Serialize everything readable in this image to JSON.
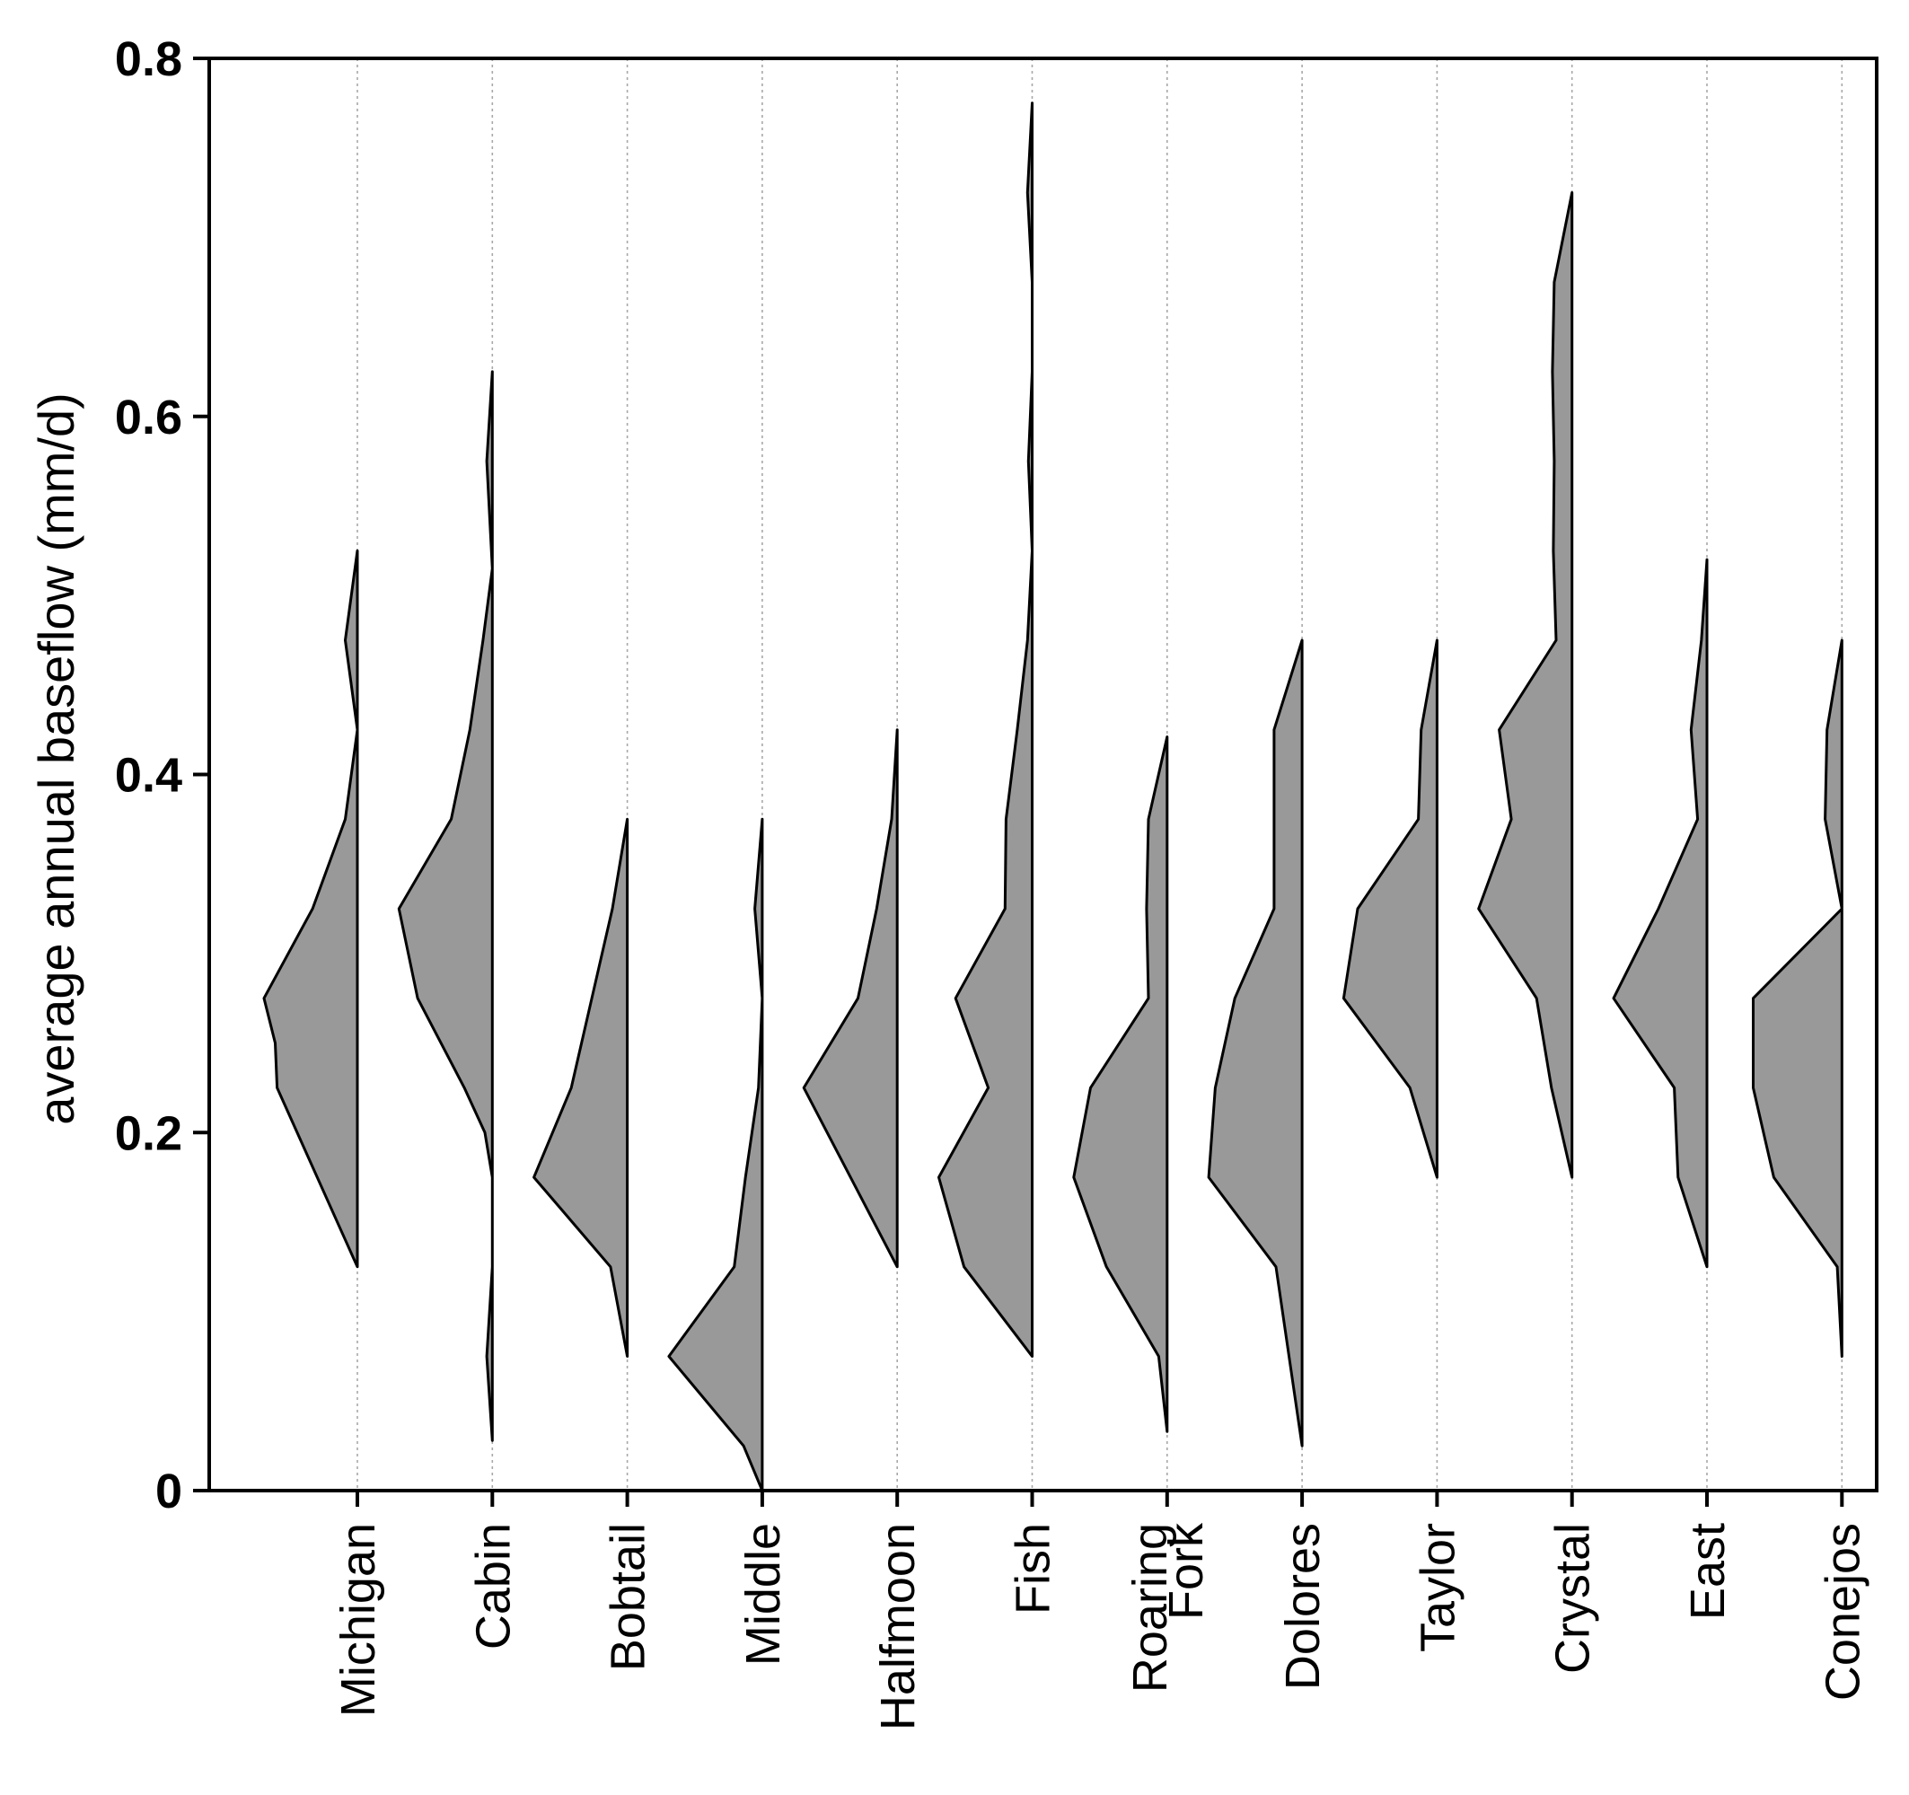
{
  "chart_data": {
    "type": "violin",
    "ylabel": "average annual baseflow (mm/d)",
    "xlabel": "",
    "ylim": [
      0,
      0.8
    ],
    "yticks": [
      "0",
      "0.2",
      "0.4",
      "0.6",
      "0.8"
    ],
    "ytick_values": [
      0,
      0.2,
      0.4,
      0.6,
      0.8
    ],
    "grid": "vertical dotted lines at each category",
    "fill_color": "#999999",
    "stroke_color": "#000000",
    "violin_side": "left",
    "categories": [
      "Michigan",
      "Cabin",
      "Bobtail",
      "Middle",
      "Halfmoon",
      "Fish",
      "Roaring Fork",
      "Dolores",
      "Taylor",
      "Crystal",
      "East",
      "Conejos"
    ],
    "category_lines": [
      [
        "Michigan"
      ],
      [
        "Cabin"
      ],
      [
        "Bobtail"
      ],
      [
        "Middle"
      ],
      [
        "Halfmoon"
      ],
      [
        "Fish"
      ],
      [
        "Roaring",
        "Fork"
      ],
      [
        "Dolores"
      ],
      [
        "Taylor"
      ],
      [
        "Crystal"
      ],
      [
        "East"
      ],
      [
        "Conejos"
      ]
    ],
    "series": [
      {
        "name": "Michigan",
        "profile": [
          [
            0.125,
            0
          ],
          [
            0.225,
            0.86
          ],
          [
            0.25,
            0.88
          ],
          [
            0.275,
            1.0
          ],
          [
            0.325,
            0.48
          ],
          [
            0.375,
            0.13
          ],
          [
            0.425,
            0.0
          ],
          [
            0.475,
            0.13
          ],
          [
            0.525,
            0
          ]
        ]
      },
      {
        "name": "Cabin",
        "profile": [
          [
            0.028,
            0
          ],
          [
            0.075,
            0.06
          ],
          [
            0.125,
            0
          ],
          [
            0.175,
            0
          ],
          [
            0.2,
            0.08
          ],
          [
            0.225,
            0.3
          ],
          [
            0.275,
            0.8
          ],
          [
            0.325,
            1.0
          ],
          [
            0.375,
            0.44
          ],
          [
            0.425,
            0.24
          ],
          [
            0.475,
            0.1
          ],
          [
            0.515,
            0.0
          ],
          [
            0.575,
            0.06
          ],
          [
            0.625,
            0
          ]
        ]
      },
      {
        "name": "Bobtail",
        "profile": [
          [
            0.075,
            0
          ],
          [
            0.125,
            0.18
          ],
          [
            0.175,
            1.0
          ],
          [
            0.225,
            0.6
          ],
          [
            0.275,
            0.38
          ],
          [
            0.325,
            0.16
          ],
          [
            0.375,
            0
          ]
        ]
      },
      {
        "name": "Middle",
        "profile": [
          [
            0,
            0
          ],
          [
            0.025,
            0.2
          ],
          [
            0.075,
            1.0
          ],
          [
            0.125,
            0.3
          ],
          [
            0.175,
            0.18
          ],
          [
            0.225,
            0.04
          ],
          [
            0.275,
            0
          ],
          [
            0.325,
            0.08
          ],
          [
            0.375,
            0
          ]
        ]
      },
      {
        "name": "Halfmoon",
        "profile": [
          [
            0.125,
            0
          ],
          [
            0.175,
            0.5
          ],
          [
            0.225,
            1.0
          ],
          [
            0.275,
            0.42
          ],
          [
            0.325,
            0.22
          ],
          [
            0.375,
            0.06
          ],
          [
            0.425,
            0
          ]
        ]
      },
      {
        "name": "Fish",
        "profile": [
          [
            0.075,
            0
          ],
          [
            0.125,
            0.73
          ],
          [
            0.175,
            1.0
          ],
          [
            0.225,
            0.47
          ],
          [
            0.275,
            0.82
          ],
          [
            0.325,
            0.29
          ],
          [
            0.375,
            0.28
          ],
          [
            0.425,
            0.16
          ],
          [
            0.475,
            0.05
          ],
          [
            0.525,
            0
          ],
          [
            0.575,
            0.04
          ],
          [
            0.625,
            0
          ],
          [
            0.675,
            0.0
          ],
          [
            0.725,
            0.05
          ],
          [
            0.775,
            0
          ]
        ]
      },
      {
        "name": "Roaring Fork",
        "profile": [
          [
            0.033,
            0
          ],
          [
            0.075,
            0.09
          ],
          [
            0.125,
            0.65
          ],
          [
            0.175,
            1.0
          ],
          [
            0.225,
            0.82
          ],
          [
            0.275,
            0.2
          ],
          [
            0.325,
            0.22
          ],
          [
            0.375,
            0.2
          ],
          [
            0.421,
            0
          ]
        ]
      },
      {
        "name": "Dolores",
        "profile": [
          [
            0.025,
            0
          ],
          [
            0.125,
            0.28
          ],
          [
            0.175,
            1.0
          ],
          [
            0.225,
            0.93
          ],
          [
            0.275,
            0.72
          ],
          [
            0.325,
            0.3
          ],
          [
            0.425,
            0.3
          ],
          [
            0.475,
            0
          ]
        ]
      },
      {
        "name": "Taylor",
        "profile": [
          [
            0.175,
            0
          ],
          [
            0.225,
            0.29
          ],
          [
            0.275,
            1.0
          ],
          [
            0.325,
            0.85
          ],
          [
            0.375,
            0.2
          ],
          [
            0.425,
            0.17
          ],
          [
            0.475,
            0
          ]
        ]
      },
      {
        "name": "Crystal",
        "profile": [
          [
            0.175,
            0
          ],
          [
            0.225,
            0.22
          ],
          [
            0.275,
            0.38
          ],
          [
            0.325,
            1.0
          ],
          [
            0.375,
            0.65
          ],
          [
            0.425,
            0.78
          ],
          [
            0.475,
            0.17
          ],
          [
            0.525,
            0.2
          ],
          [
            0.575,
            0.19
          ],
          [
            0.625,
            0.21
          ],
          [
            0.675,
            0.19
          ],
          [
            0.725,
            0
          ]
        ]
      },
      {
        "name": "East",
        "profile": [
          [
            0.125,
            0
          ],
          [
            0.175,
            0.31
          ],
          [
            0.225,
            0.35
          ],
          [
            0.275,
            1.0
          ],
          [
            0.325,
            0.52
          ],
          [
            0.375,
            0.1
          ],
          [
            0.425,
            0.17
          ],
          [
            0.475,
            0.06
          ],
          [
            0.52,
            0
          ]
        ]
      },
      {
        "name": "Conejos",
        "profile": [
          [
            0.075,
            0
          ],
          [
            0.125,
            0.05
          ],
          [
            0.175,
            0.73
          ],
          [
            0.225,
            0.95
          ],
          [
            0.275,
            0.95
          ],
          [
            0.325,
            0
          ],
          [
            0.375,
            0.18
          ],
          [
            0.425,
            0.16
          ],
          [
            0.475,
            0
          ]
        ]
      }
    ]
  }
}
